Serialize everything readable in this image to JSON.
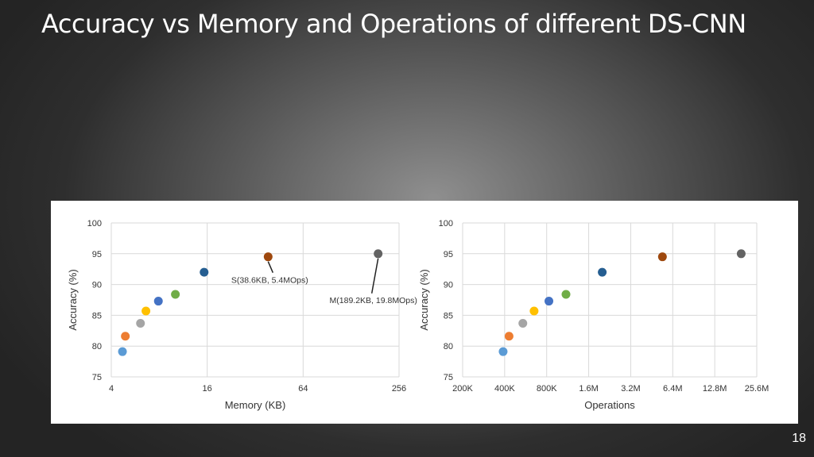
{
  "slide": {
    "title": "Accuracy vs Memory and Operations of different DS-CNN",
    "number": "18"
  },
  "colors": {
    "background": "#2a2a2a",
    "grid": "#d9d9d9",
    "text": "#333333"
  },
  "chart_data": [
    {
      "type": "scatter",
      "title": "",
      "xlabel": "Memory (KB)",
      "ylabel": "Accuracy (%)",
      "x_scale": "log2",
      "xlim": [
        4,
        256
      ],
      "ylim": [
        75,
        100
      ],
      "x_ticks": [
        4,
        16,
        64,
        256
      ],
      "x_tick_labels": [
        "4",
        "16",
        "64",
        "256"
      ],
      "y_ticks": [
        75,
        80,
        85,
        90,
        95,
        100
      ],
      "y_tick_labels": [
        "75",
        "80",
        "85",
        "90",
        "95",
        "100"
      ],
      "grid": true,
      "points": [
        {
          "x": 4.7,
          "y": 79.1,
          "color": "#5b9bd5"
        },
        {
          "x": 4.9,
          "y": 81.6,
          "color": "#ed7d31"
        },
        {
          "x": 6.1,
          "y": 83.7,
          "color": "#a5a5a5"
        },
        {
          "x": 6.6,
          "y": 85.7,
          "color": "#ffc000"
        },
        {
          "x": 7.9,
          "y": 87.3,
          "color": "#4472c4"
        },
        {
          "x": 10.1,
          "y": 88.4,
          "color": "#70ad47"
        },
        {
          "x": 15.3,
          "y": 92.0,
          "color": "#255e91"
        },
        {
          "x": 38.6,
          "y": 94.5,
          "color": "#9e480e"
        },
        {
          "x": 189.2,
          "y": 95.0,
          "color": "#636363"
        }
      ],
      "annotations": [
        {
          "text": "S(38.6KB, 5.4MOps)",
          "x": 38.6,
          "y": 94.5
        },
        {
          "text": "M(189.2KB, 19.8MOps)",
          "x": 189.2,
          "y": 95.0
        }
      ]
    },
    {
      "type": "scatter",
      "title": "",
      "xlabel": "Operations",
      "ylabel": "Accuracy (%)",
      "x_scale": "log2",
      "xlim": [
        200000,
        25600000
      ],
      "ylim": [
        75,
        100
      ],
      "x_ticks": [
        200000,
        400000,
        800000,
        1600000,
        3200000,
        6400000,
        12800000,
        25600000
      ],
      "x_tick_labels": [
        "200K",
        "400K",
        "800K",
        "1.6M",
        "3.2M",
        "6.4M",
        "12.8M",
        "25.6M"
      ],
      "y_ticks": [
        75,
        80,
        85,
        90,
        95,
        100
      ],
      "y_tick_labels": [
        "75",
        "80",
        "85",
        "90",
        "95",
        "100"
      ],
      "grid": true,
      "points": [
        {
          "x": 390000,
          "y": 79.1,
          "color": "#5b9bd5"
        },
        {
          "x": 430000,
          "y": 81.6,
          "color": "#ed7d31"
        },
        {
          "x": 540000,
          "y": 83.7,
          "color": "#a5a5a5"
        },
        {
          "x": 650000,
          "y": 85.7,
          "color": "#ffc000"
        },
        {
          "x": 830000,
          "y": 87.3,
          "color": "#4472c4"
        },
        {
          "x": 1100000,
          "y": 88.4,
          "color": "#70ad47"
        },
        {
          "x": 2000000,
          "y": 92.0,
          "color": "#255e91"
        },
        {
          "x": 5400000,
          "y": 94.5,
          "color": "#9e480e"
        },
        {
          "x": 19800000,
          "y": 95.0,
          "color": "#636363"
        }
      ],
      "annotations": []
    }
  ]
}
